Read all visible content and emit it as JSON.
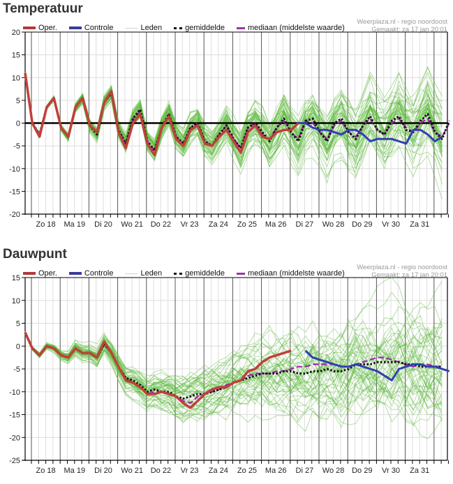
{
  "legend": {
    "oper": "Oper.",
    "controle": "Controle",
    "leden": "Leden",
    "gemiddelde": "gemiddelde",
    "mediaan": "mediaan (middelste waarde)"
  },
  "credit": {
    "line1": "Weerplaza.nl - regio noordoost",
    "line2": "Gemaakt: za 17 jan 20:01"
  },
  "colors": {
    "oper": "#c0392b",
    "controle": "#3040b0",
    "leden": "#5cb83a",
    "gemiddelde": "#111111",
    "mediaan": "#a020b0"
  },
  "chart_data": [
    {
      "type": "line",
      "title": "Temperatuur",
      "ylim": [
        -20,
        20
      ],
      "yticks": [
        20,
        15,
        10,
        5,
        0,
        -5,
        -10,
        -15,
        -20
      ],
      "x_step": "6h",
      "day_labels": [
        "Zo 18",
        "Ma 19",
        "Di 20",
        "Wo 21",
        "Do 22",
        "Vr 23",
        "Za 24",
        "Zo 25",
        "Ma 26",
        "Di 27",
        "Wo 28",
        "Do 29",
        "Vr 30",
        "Za 31"
      ],
      "grid": true,
      "legend_position": "top",
      "series": [
        {
          "name": "Oper.",
          "start": 0,
          "values": [
            11,
            0,
            -3,
            3.5,
            5.5,
            -1,
            -3,
            3.5,
            5.5,
            -0.5,
            -2,
            4.5,
            7,
            -2,
            -5.5,
            0,
            2,
            -4.5,
            -7,
            -1,
            1.5,
            -3.5,
            -5,
            -1.5,
            -0.5,
            -4.5,
            -5,
            -3,
            -1.5,
            -4,
            -6.5,
            -2,
            -0.5,
            -3,
            -3.5,
            -2,
            -1.5,
            -1.5,
            0
          ]
        },
        {
          "name": "Controle",
          "start": 38,
          "values": [
            0,
            0,
            -1,
            -1.5,
            -1.5,
            -2,
            -2.5,
            -1.5,
            -1.5,
            -2.5,
            -4,
            -3.5,
            -3.5,
            -3.5,
            -4,
            -4.5,
            -1.5,
            -1.5,
            -2.5,
            -4,
            -3
          ]
        },
        {
          "name": "gemiddelde",
          "start": 0,
          "values": [
            11,
            0,
            -2.5,
            3.5,
            5.5,
            -1,
            -3,
            3.5,
            5.5,
            -0.5,
            -2.5,
            4.5,
            6.5,
            -1.5,
            -4.5,
            1,
            3,
            -4,
            -6,
            -1,
            2,
            -3,
            -4.5,
            -1,
            0,
            -4,
            -5,
            -2.5,
            -0.5,
            -3.5,
            -5.5,
            -1,
            0,
            -2,
            -4,
            -1,
            1,
            -2,
            -4,
            0.5,
            1,
            -2,
            -4,
            0,
            1,
            -2,
            -3.5,
            -0.5,
            1.5,
            -1.5,
            -2.5,
            0.5,
            1.5,
            -1.5,
            -2,
            0.5,
            2,
            -2,
            -3.5,
            0.5
          ]
        },
        {
          "name": "mediaan",
          "start": 0,
          "values": [
            11,
            0,
            -2.5,
            3.5,
            5.5,
            -1,
            -3,
            3.5,
            5.5,
            -0.5,
            -2,
            4.5,
            6.5,
            -1.5,
            -4.5,
            1,
            2.5,
            -4,
            -6,
            -1,
            2,
            -3,
            -4.5,
            -1,
            0,
            -4,
            -5,
            -2.5,
            -0.5,
            -3.5,
            -5.5,
            -1,
            0,
            -2.5,
            -3.5,
            -1,
            0.5,
            -2,
            -3.5,
            0.5,
            0,
            -2,
            -3.5,
            -0.5,
            0.5,
            -2,
            -3,
            -0.5,
            1,
            -1.5,
            -2.5,
            0,
            1,
            -1,
            -2,
            0,
            1,
            -2,
            -3,
            0
          ]
        }
      ],
      "members": "~50 ensemble members (Leden), spread growing from ±1°C to ±10°C"
    },
    {
      "type": "line",
      "title": "Dauwpunt",
      "ylim": [
        -25,
        15
      ],
      "yticks": [
        15,
        10,
        5,
        0,
        -5,
        -10,
        -15,
        -20,
        -25
      ],
      "x_step": "6h",
      "day_labels": [
        "Zo 18",
        "Ma 19",
        "Di 20",
        "Wo 21",
        "Do 22",
        "Vr 23",
        "Za 24",
        "Zo 25",
        "Ma 26",
        "Di 27",
        "Wo 28",
        "Do 29",
        "Vr 30",
        "Za 31"
      ],
      "grid": true,
      "legend_position": "top",
      "series": [
        {
          "name": "Oper.",
          "start": 0,
          "values": [
            3,
            -0.5,
            -2,
            0,
            -0.5,
            -2,
            -2.5,
            -0.5,
            -1.5,
            -1.5,
            -2.5,
            1,
            -1.5,
            -4.5,
            -7.5,
            -8,
            -9,
            -10.5,
            -10.5,
            -10,
            -10.5,
            -11,
            -12.5,
            -13.5,
            -12,
            -10.5,
            -9.5,
            -9,
            -9,
            -8,
            -7.5,
            -5.5,
            -5,
            -3.5,
            -2.5,
            -2,
            -1.5,
            -1
          ]
        },
        {
          "name": "Controle",
          "start": 39,
          "values": [
            -1,
            -2.5,
            -3,
            -3.5,
            -4,
            -4.5,
            -4.5,
            -4,
            -4.5,
            -5,
            -5.5,
            -6.5,
            -7.5,
            -5,
            -4.5,
            -4,
            -4,
            -4.5,
            -4.5,
            -5,
            -5.5
          ]
        },
        {
          "name": "gemiddelde",
          "start": 0,
          "values": [
            3,
            -0.5,
            -2,
            0,
            -0.5,
            -2,
            -2.5,
            -0.5,
            -1.5,
            -1.5,
            -2.5,
            0.5,
            -1.5,
            -4.5,
            -7,
            -7.5,
            -8.5,
            -10,
            -9.5,
            -10,
            -10,
            -11,
            -11.5,
            -11,
            -10.5,
            -10.5,
            -10,
            -9.5,
            -9,
            -8,
            -7.5,
            -7,
            -6.5,
            -6,
            -6,
            -6,
            -5.5,
            -5.5,
            -6,
            -6,
            -5.5,
            -5.5,
            -5,
            -5.5,
            -5.5,
            -5,
            -4,
            -4,
            -4,
            -3.5,
            -3.5,
            -3.5,
            -3.5,
            -4,
            -4,
            -4.5,
            -4.5,
            -4.5,
            -4.5
          ]
        },
        {
          "name": "mediaan",
          "start": 0,
          "values": [
            3,
            -0.5,
            -2,
            0,
            -0.5,
            -2,
            -2.5,
            -0.5,
            -1.5,
            -1.5,
            -2.5,
            0.5,
            -1.5,
            -4.5,
            -7,
            -8,
            -9,
            -10.5,
            -10,
            -10,
            -10.5,
            -11,
            -12,
            -12.5,
            -11,
            -10.5,
            -10,
            -9.5,
            -8.5,
            -8,
            -7.5,
            -6.5,
            -6,
            -6,
            -6,
            -5.5,
            -5.5,
            -5,
            -4.5,
            -4.5,
            -4,
            -4,
            -4,
            -4,
            -4.5,
            -4.5,
            -4,
            -3.5,
            -3,
            -2.5,
            -2.5,
            -3,
            -3.5,
            -4,
            -4.5,
            -4,
            -4,
            -4.5,
            -4.5
          ]
        }
      ],
      "members": "~50 ensemble members (Leden), spread growing from ±1°C to ±12°C"
    }
  ],
  "titles": {
    "temp": "Temperatuur",
    "dew": "Dauwpunt"
  }
}
